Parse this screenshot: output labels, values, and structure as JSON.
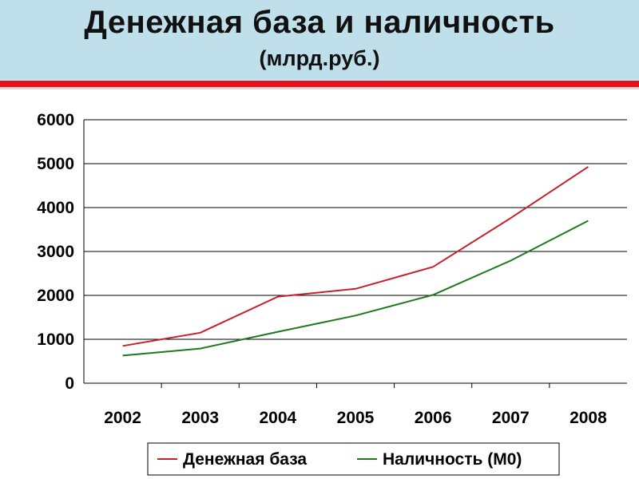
{
  "header": {
    "title": "Денежная база и наличность",
    "subtitle": "(млрд.руб.)"
  },
  "colors": {
    "header_bg": "#bfe0ea",
    "accent_line": "#e8101a",
    "series_1": "#c8202a",
    "series_2": "#1e7a1e"
  },
  "chart_data": {
    "type": "line",
    "x": [
      "2002",
      "2003",
      "2004",
      "2005",
      "2006",
      "2007",
      "2008"
    ],
    "ylim": [
      0,
      6000
    ],
    "yticks": [
      "0",
      "1000",
      "2000",
      "3000",
      "4000",
      "5000",
      "6000"
    ],
    "grid": true,
    "legend_position": "bottom",
    "series": [
      {
        "name": "Денежная база",
        "color": "#c8202a",
        "values": [
          850,
          1150,
          1970,
          2150,
          2650,
          3760,
          4930
        ]
      },
      {
        "name": "Наличность (М0)",
        "color": "#1e7a1e",
        "values": [
          630,
          790,
          1170,
          1540,
          2010,
          2790,
          3700
        ]
      }
    ]
  }
}
